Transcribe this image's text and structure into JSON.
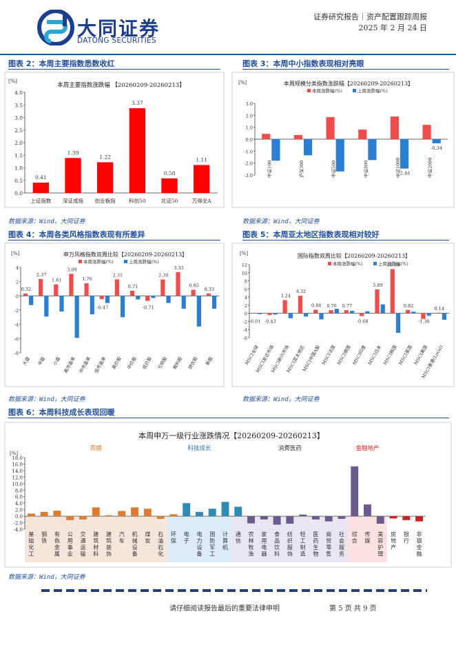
{
  "header": {
    "company_cn": "大同证券",
    "company_en": "DATONG SECURITIES",
    "report_type": "证券研究报告｜资产配置跟踪周报",
    "date": "2025 年 2 月 24 日"
  },
  "figures": [
    {
      "title": "图表 2：本周主要指数悉数收红",
      "source": "数据来源：Wind，大同证券"
    },
    {
      "title": "图表 3：本周中小指数表现相对亮眼",
      "source": "数据来源：Wind，大同证券"
    },
    {
      "title": "图表 4：本周各类风格指数表现有所差异",
      "source": "数据来源：Wind，大同证券"
    },
    {
      "title": "图表 5：本周亚太地区指数表现相对较好",
      "source": "数据来源：Wind，大同证券"
    },
    {
      "title": "图表 6：本周科技成长表现回暖",
      "source": "数据来源：Wind，大同证券"
    }
  ],
  "chart_data": [
    {
      "type": "bar",
      "title": "本周主要指数涨跌幅 【20260209-20260213】",
      "ylabel": "[%]",
      "ylim": [
        0,
        4
      ],
      "yticks": [
        "0.0",
        "0.5",
        "1.0",
        "1.5",
        "2.0",
        "2.5",
        "3.0",
        "3.5",
        "4.0"
      ],
      "categories": [
        "上证指数",
        "深证成指",
        "创业板指",
        "科创50",
        "北证50",
        "万得全A"
      ],
      "values": [
        0.41,
        1.39,
        1.22,
        3.37,
        0.58,
        1.11
      ],
      "labels": [
        "0.41",
        "1.39",
        "1.22",
        "3.37",
        "0.58",
        "1.11"
      ],
      "color": "#ff0000"
    },
    {
      "type": "bar",
      "title": "本周规模分类指数涨跌幅【20260209-20260213】",
      "ylabel": "[%]",
      "ylim": [
        -3,
        3
      ],
      "yticks": [
        "3.0",
        "2.0",
        "1.0",
        "0.0",
        "-1.0",
        "-2.0",
        "-3.0"
      ],
      "legend": [
        "本周涨跌幅(%)",
        "上周涨跌幅(%)"
      ],
      "categories": [
        "中证100",
        "沪深300",
        "中证500",
        "中证800",
        "中证1000",
        "中证2000"
      ],
      "series": [
        {
          "name": "本周涨跌幅(%)",
          "values": [
            0.45,
            0.35,
            1.85,
            0.8,
            1.9,
            1.2
          ],
          "color": "#f24b4b"
        },
        {
          "name": "上周涨跌幅(%)",
          "values": [
            -1.8,
            -1.35,
            -2.7,
            -1.75,
            -2.46,
            -0.34
          ],
          "color": "#2a7fd4"
        }
      ],
      "labels": [
        {
          "series": 1,
          "index": 4,
          "text": "-2.46"
        },
        {
          "series": 1,
          "index": 5,
          "text": "-0.34"
        }
      ]
    },
    {
      "type": "bar",
      "title": "申万风格指数双周比较【20260209-20260213】",
      "ylabel": "[%]",
      "ylim": [
        -8,
        4
      ],
      "yticks": [
        "4",
        "2",
        "0",
        "-2",
        "-4",
        "-6",
        "-8"
      ],
      "legend": [
        "本周涨跌幅(%)",
        "上周涨跌幅(%)"
      ],
      "categories": [
        "大盘",
        "中盘",
        "小盘",
        "高市盈率",
        "中市盈率",
        "低市盈率",
        "高价股",
        "中价股",
        "低价股",
        "亏损股",
        "微利股",
        "绩优股",
        "新股"
      ],
      "series": [
        {
          "name": "本周涨跌幅(%)",
          "values": [
            0.32,
            2.37,
            1.61,
            3.09,
            1.76,
            -0.47,
            2.31,
            0.71,
            -0.71,
            2.3,
            3.33,
            0.85,
            0.33
          ],
          "color": "#f24b4b"
        },
        {
          "name": "上周涨跌幅(%)",
          "values": [
            -1.3,
            -2.9,
            -2.2,
            -5.9,
            -2.6,
            -1.0,
            -3.0,
            -0.5,
            -0.3,
            -1.0,
            -1.8,
            -4.3,
            -1.8
          ],
          "color": "#2a7fd4"
        }
      ],
      "labels": [
        "0.32",
        "2.37",
        "1.61",
        "3.09",
        "1.76",
        "-0.47",
        "2.31",
        "0.71",
        "-0.71",
        "2.30",
        "3.33",
        "0.85",
        "0.33"
      ]
    },
    {
      "type": "bar",
      "title": "国际指数双周比较【20260209-20260213】",
      "ylabel": "[%]",
      "ylim": [
        -6,
        12
      ],
      "yticks": [
        "12",
        "10",
        "8",
        "6",
        "4",
        "2",
        "0",
        "-2",
        "-4",
        "-6"
      ],
      "legend": [
        "本周涨跌幅(%)",
        "上周涨跌幅(%)"
      ],
      "categories": [
        "MSCI全球",
        "MSCI发达市场",
        "MSCI新兴市场",
        "MSCI亚太地区",
        "MSCI中国A股",
        "MSCI法国",
        "MSCI德国",
        "MSCI印度",
        "MSCI日本",
        "MSCI韩国",
        "MSCI英国",
        "MSCI美国",
        "MSCI香港(Local)"
      ],
      "series": [
        {
          "name": "本周涨跌幅(%)",
          "values": [
            -0.01,
            -0.43,
            3.24,
            4.32,
            0.88,
            0.76,
            0.77,
            -0.68,
            5.89,
            10.88,
            0.82,
            -1.38,
            0.14
          ],
          "color": "#f24b4b"
        },
        {
          "name": "上周涨跌幅(%)",
          "values": [
            -0.2,
            -0.3,
            -1.2,
            -0.8,
            -1.5,
            1.1,
            0.6,
            0.5,
            2.2,
            -4.8,
            0.4,
            -0.6,
            -1.6
          ],
          "color": "#2a7fd4"
        }
      ],
      "labels": [
        "-0.01",
        "-0.43",
        "3.24",
        "4.32",
        "0.88",
        "0.76",
        "0.77",
        "-0.68",
        "5.89",
        "10.88",
        "0.82",
        "-1.38",
        "0.14"
      ]
    },
    {
      "type": "bar",
      "title": "本周申万一级行业涨跌情况【20260209-20260213】",
      "ylabel": "[%]",
      "ylim": [
        -4,
        18
      ],
      "yticks": [
        "18.0",
        "16.0",
        "14.0",
        "12.0",
        "10.0",
        "8.0",
        "6.0",
        "4.0",
        "2.0",
        "0.0",
        "-2.0",
        "-4.0"
      ],
      "groups": [
        {
          "name": "周期",
          "start": 0,
          "end": 10,
          "color": "#f4e6da",
          "text_color": "#e07a2e"
        },
        {
          "name": "科技成长",
          "start": 11,
          "end": 15,
          "color": "#ddeaf7",
          "text_color": "#2e75b6"
        },
        {
          "name": "消费医药",
          "start": 16,
          "end": 24,
          "color": "#e9e6f1",
          "text_color": "#333333"
        },
        {
          "name": "金融地产",
          "start": 25,
          "end": 27,
          "color": "#fbe1e1",
          "text_color": "#e02020"
        }
      ],
      "categories": [
        "基础化工",
        "钢铁",
        "有色金属",
        "公用事业",
        "交通运输",
        "建筑材料",
        "建筑装饰",
        "汽车",
        "机械设备",
        "煤炭",
        "石油石化",
        "环保",
        "电子",
        "电力设备",
        "国防军工",
        "计算机",
        "通信",
        "农林牧渔",
        "家用电器",
        "食品饮料",
        "纺织服饰",
        "轻工制造",
        "医药生物",
        "商贸零售",
        "社会服务",
        "综合",
        "传媒",
        "美容护理",
        "房地产",
        "银行",
        "非银金融"
      ],
      "values": [
        0.8,
        1.3,
        1.7,
        -1.2,
        -1.0,
        2.7,
        0.3,
        1.6,
        2.7,
        2.3,
        -0.8,
        0.6,
        4.0,
        1.3,
        2.3,
        4.4,
        2.9,
        -2.2,
        -1.0,
        -2.6,
        -2.3,
        0.5,
        -1.0,
        -1.6,
        -0.8,
        15.3,
        3.6,
        -2.3,
        -0.7,
        -1.2,
        -1.6
      ],
      "bar_colors": [
        "#e07a2e",
        "#e07a2e",
        "#e07a2e",
        "#e07a2e",
        "#e07a2e",
        "#e07a2e",
        "#e07a2e",
        "#e07a2e",
        "#e07a2e",
        "#e07a2e",
        "#e07a2e",
        "#e07a2e",
        "#2e8bb6",
        "#2e8bb6",
        "#2e8bb6",
        "#2e8bb6",
        "#2e8bb6",
        "#6a5a8e",
        "#6a5a8e",
        "#6a5a8e",
        "#6a5a8e",
        "#6a5a8e",
        "#6a5a8e",
        "#6a5a8e",
        "#6a5a8e",
        "#6a5a8e",
        "#6a5a8e",
        "#6a5a8e",
        "#cc1f1f",
        "#cc1f1f",
        "#cc1f1f"
      ]
    }
  ],
  "footer": {
    "disclaimer": "请仔细阅读报告最后的重要法律申明",
    "page": "第 5 页 共 9 页"
  }
}
